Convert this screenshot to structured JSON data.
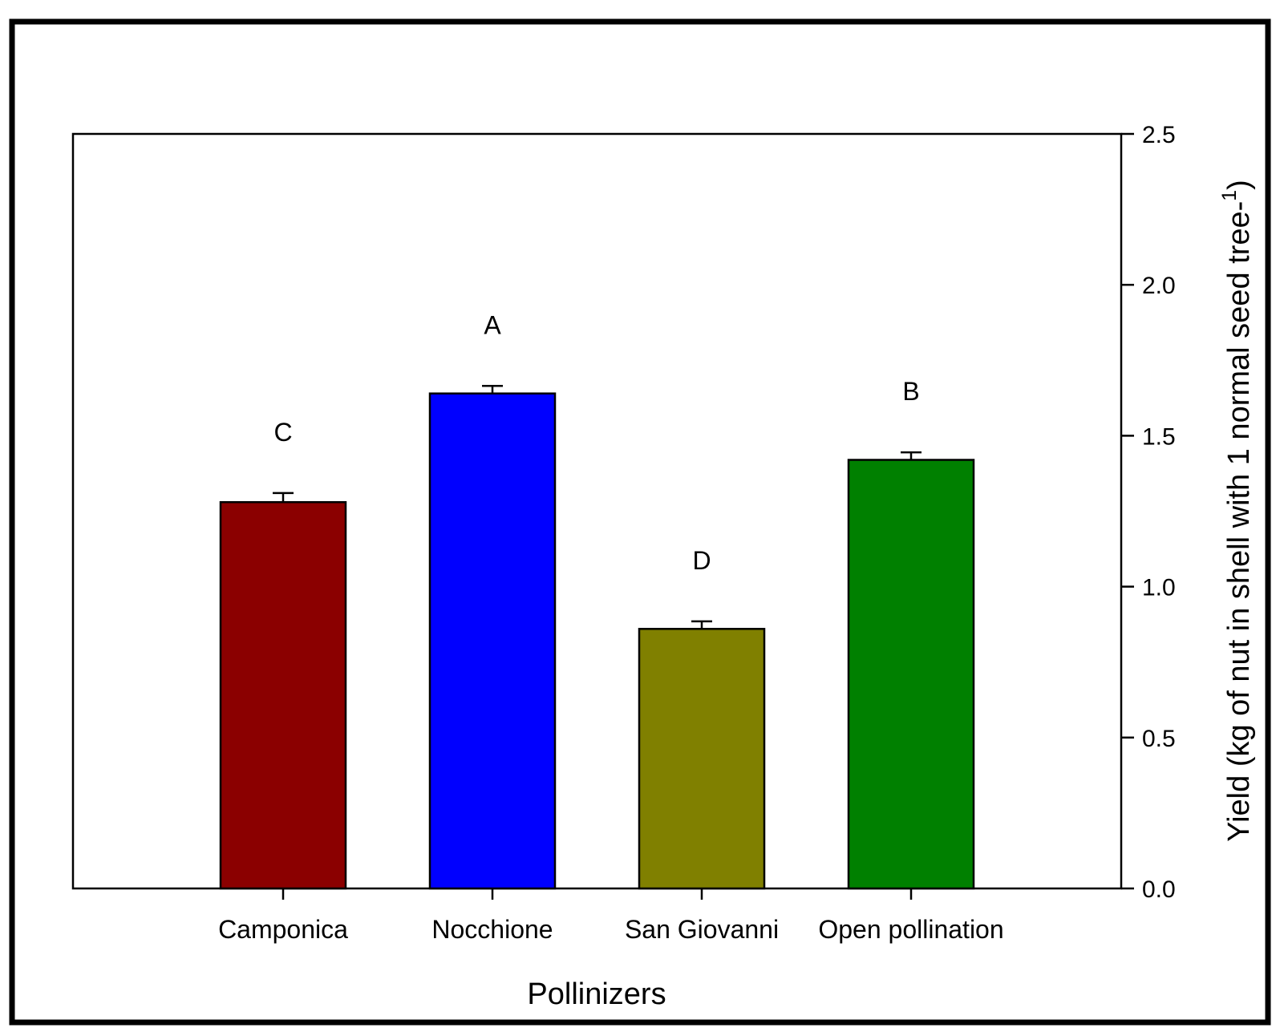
{
  "chart_data": {
    "type": "bar",
    "categories": [
      "Camponica",
      "Nocchione",
      "San Giovanni",
      "Open pollination"
    ],
    "values": [
      1.28,
      1.64,
      0.86,
      1.42
    ],
    "errors": [
      0.03,
      0.025,
      0.025,
      0.025
    ],
    "significance_letters": [
      "C",
      "A",
      "D",
      "B"
    ],
    "colors": [
      "#8b0000",
      "#0000ff",
      "#808000",
      "#008000"
    ],
    "xlabel": "Pollinizers",
    "ylabel_main": "Yield (kg of nut in shell with 1 normal seed tree-",
    "ylabel_superscript": "1",
    "ylabel_close": ")",
    "ylim": [
      0.0,
      2.5
    ],
    "yticks": [
      0.0,
      0.5,
      1.0,
      1.5,
      2.0,
      2.5
    ],
    "ytick_labels": [
      "0.0",
      "0.5",
      "1.0",
      "1.5",
      "2.0",
      "2.5"
    ],
    "yaxis_side": "right",
    "grid": false
  }
}
